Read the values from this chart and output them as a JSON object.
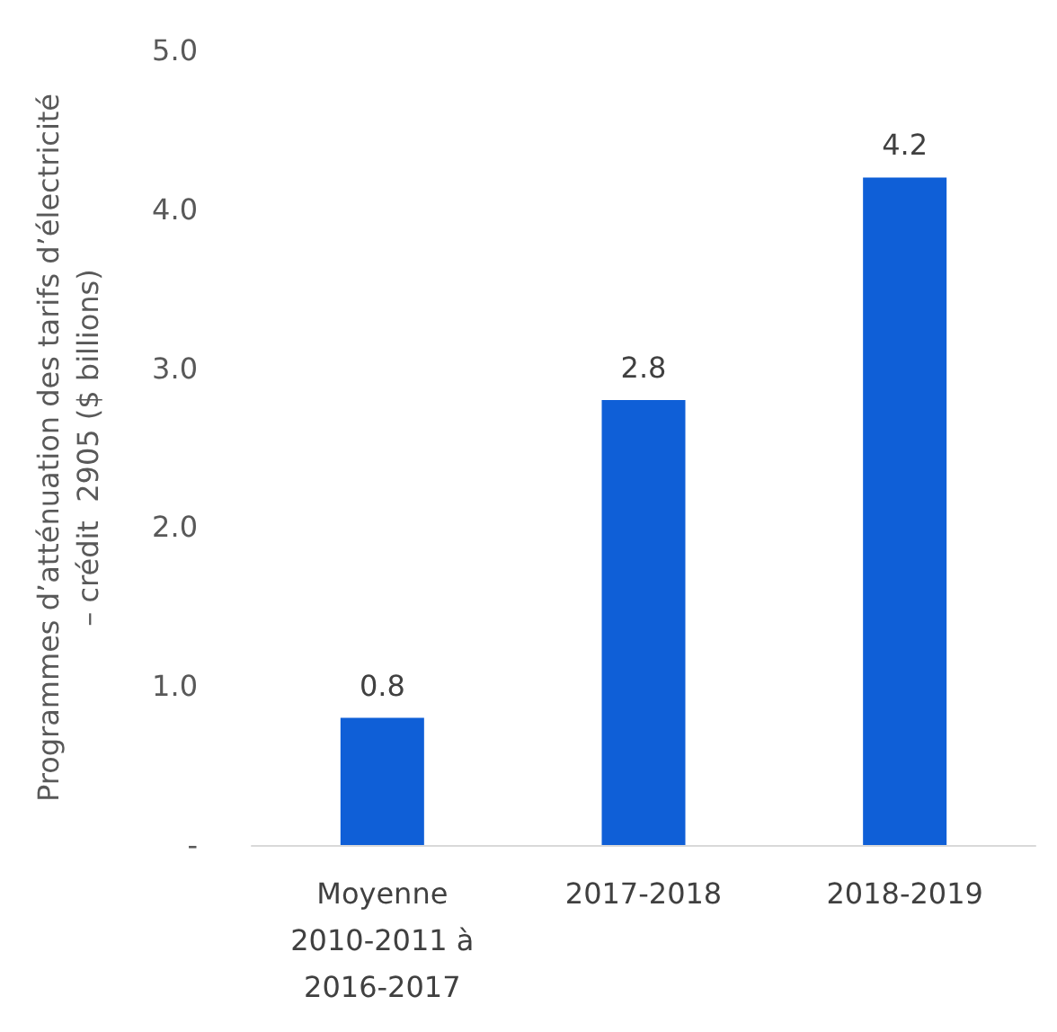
{
  "chart_data": {
    "type": "bar",
    "ylabel": "Programmes d’atténuation des tarifs d’électricité\n– crédit  2905 ($ billions)",
    "categories": [
      "Moyenne\n2010-2011 à\n2016-2017",
      "2017-2018",
      "2018-2019"
    ],
    "values": [
      0.8,
      2.8,
      4.2
    ],
    "color": "#0f5fd7",
    "ylim": [
      0,
      5
    ],
    "yticks": [
      {
        "value": 0,
        "label": "-"
      },
      {
        "value": 1,
        "label": "1.0"
      },
      {
        "value": 2,
        "label": "2.0"
      },
      {
        "value": 3,
        "label": "3.0"
      },
      {
        "value": 4,
        "label": "4.0"
      },
      {
        "value": 5,
        "label": "5.0"
      }
    ],
    "grid": false,
    "data_labels": true
  }
}
